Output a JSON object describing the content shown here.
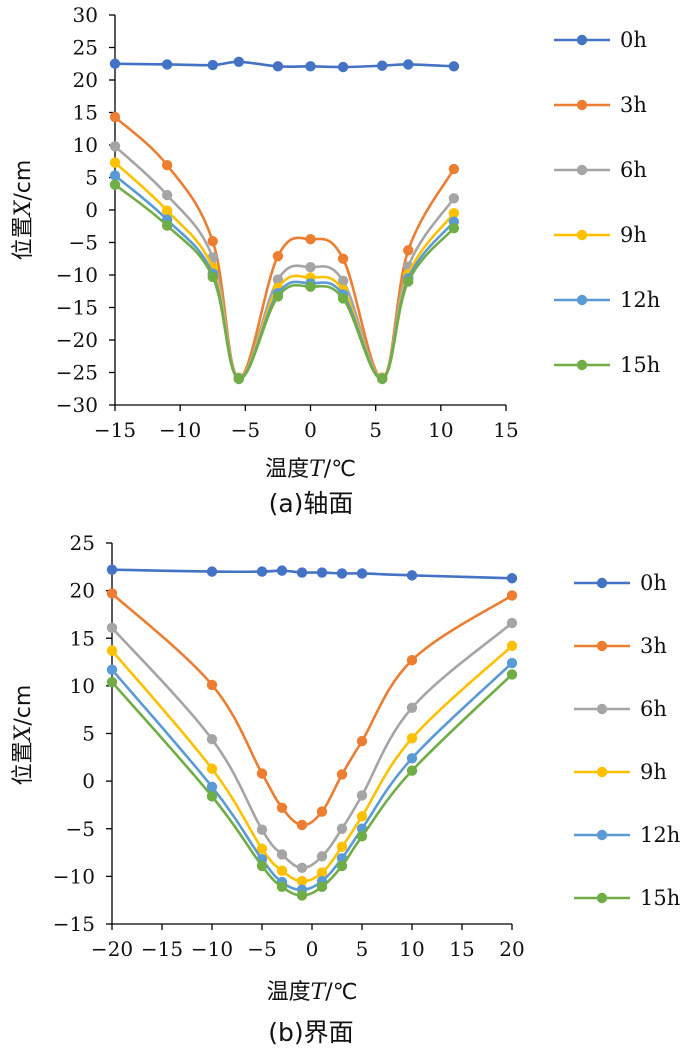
{
  "chart_data": [
    {
      "type": "line",
      "caption": "(a)轴面",
      "xlabel": {
        "prefix": "温度",
        "var": "T",
        "unit": "/℃"
      },
      "ylabel": {
        "prefix": "位置",
        "var": "X",
        "unit": "/cm"
      },
      "xlim": [
        -15,
        15
      ],
      "ylim": [
        -30,
        30
      ],
      "xticks": [
        -15,
        -10,
        -5,
        0,
        5,
        10,
        15
      ],
      "yticks": [
        30,
        25,
        20,
        15,
        10,
        5,
        0,
        -5,
        -10,
        -15,
        -20,
        -25,
        -30
      ],
      "x": [
        -15,
        -11,
        -7.5,
        -5.5,
        -2.5,
        0,
        2.5,
        5.5,
        7.5,
        11
      ],
      "series": [
        {
          "name": "0h",
          "color": "#4472C4",
          "values": [
            22.5,
            22.4,
            22.3,
            22.8,
            22.1,
            22.1,
            22.0,
            22.2,
            22.4,
            22.1
          ]
        },
        {
          "name": "3h",
          "color": "#ED7D31",
          "values": [
            14.3,
            6.9,
            -4.8,
            -25.8,
            -7.1,
            -4.5,
            -7.5,
            -25.8,
            -6.2,
            6.3
          ]
        },
        {
          "name": "6h",
          "color": "#A5A5A5",
          "values": [
            9.8,
            2.3,
            -7.3,
            -25.8,
            -10.7,
            -8.8,
            -10.9,
            -25.8,
            -8.7,
            1.8
          ]
        },
        {
          "name": "9h",
          "color": "#FFC000",
          "values": [
            7.3,
            -0.1,
            -8.9,
            -25.8,
            -12.0,
            -10.4,
            -12.3,
            -25.8,
            -9.9,
            -0.5
          ]
        },
        {
          "name": "12h",
          "color": "#5B9BD5",
          "values": [
            5.3,
            -1.5,
            -9.8,
            -25.9,
            -12.8,
            -11.3,
            -13.0,
            -25.9,
            -10.5,
            -1.8
          ]
        },
        {
          "name": "15h",
          "color": "#70AD47",
          "values": [
            3.9,
            -2.4,
            -10.3,
            -26.0,
            -13.3,
            -11.8,
            -13.6,
            -26.0,
            -11.0,
            -2.8
          ]
        }
      ]
    },
    {
      "type": "line",
      "caption": "(b)界面",
      "xlabel": {
        "prefix": "温度",
        "var": "T",
        "unit": "/℃"
      },
      "ylabel": {
        "prefix": "位置",
        "var": "X",
        "unit": "/cm"
      },
      "xlim": [
        -20,
        20
      ],
      "ylim": [
        -15,
        25
      ],
      "xticks": [
        -20,
        -15,
        -10,
        -5,
        0,
        5,
        10,
        15,
        20
      ],
      "yticks": [
        25,
        20,
        15,
        10,
        5,
        0,
        -5,
        -10,
        -15
      ],
      "x": [
        -20,
        -10,
        -5,
        -3,
        -1,
        1,
        3,
        5,
        10,
        20
      ],
      "series": [
        {
          "name": "0h",
          "color": "#4472C4",
          "values": [
            22.2,
            22.0,
            22.0,
            22.1,
            21.9,
            21.9,
            21.8,
            21.8,
            21.6,
            21.3
          ]
        },
        {
          "name": "3h",
          "color": "#ED7D31",
          "values": [
            19.7,
            10.1,
            0.8,
            -2.8,
            -4.6,
            -3.2,
            0.7,
            4.2,
            12.7,
            19.5
          ]
        },
        {
          "name": "6h",
          "color": "#A5A5A5",
          "values": [
            16.1,
            4.4,
            -5.1,
            -7.7,
            -9.1,
            -7.9,
            -5.0,
            -1.5,
            7.7,
            16.6
          ]
        },
        {
          "name": "9h",
          "color": "#FFC000",
          "values": [
            13.7,
            1.3,
            -7.1,
            -9.4,
            -10.5,
            -9.6,
            -6.9,
            -3.7,
            4.5,
            14.2
          ]
        },
        {
          "name": "12h",
          "color": "#5B9BD5",
          "values": [
            11.7,
            -0.6,
            -8.2,
            -10.6,
            -11.4,
            -10.5,
            -8.1,
            -5.0,
            2.4,
            12.4
          ]
        },
        {
          "name": "15h",
          "color": "#70AD47",
          "values": [
            10.4,
            -1.6,
            -8.9,
            -11.1,
            -12.0,
            -11.1,
            -8.9,
            -5.8,
            1.1,
            11.2
          ]
        }
      ]
    }
  ]
}
